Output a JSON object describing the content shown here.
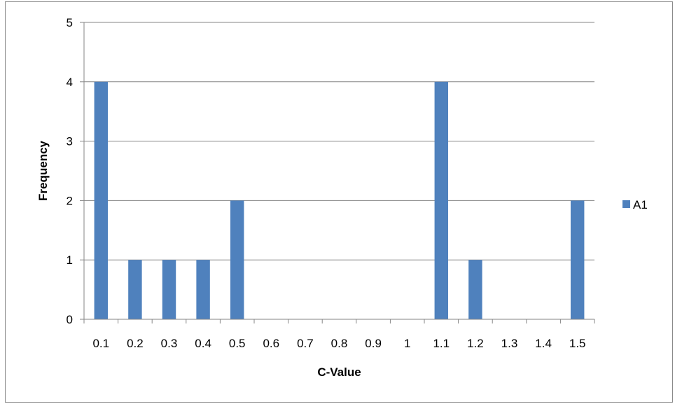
{
  "chart_data": {
    "type": "bar",
    "categories": [
      "0.1",
      "0.2",
      "0.3",
      "0.4",
      "0.5",
      "0.6",
      "0.7",
      "0.8",
      "0.9",
      "1",
      "1.1",
      "1.2",
      "1.3",
      "1.4",
      "1.5"
    ],
    "series": [
      {
        "name": "A1",
        "color": "#4f81bd",
        "values": [
          4,
          1,
          1,
          1,
          2,
          0,
          0,
          0,
          0,
          0,
          4,
          1,
          0,
          0,
          2
        ]
      }
    ],
    "title": "",
    "xlabel": "C-Value",
    "ylabel": "Frequency",
    "ylim": [
      0,
      5
    ],
    "yticks": [
      "0",
      "1",
      "2",
      "3",
      "4",
      "5"
    ],
    "grid": true,
    "legend_position": "right",
    "gridline_color": "#868686"
  }
}
